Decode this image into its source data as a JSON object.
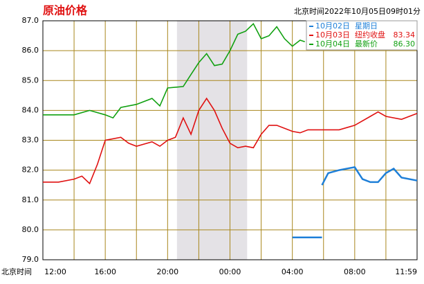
{
  "chart_data": {
    "type": "line",
    "title": "原油价格",
    "subtitle": "北京时间2022年10月05日09时01分",
    "x_label": "北京时间",
    "xlim": [
      0,
      24
    ],
    "ylim": [
      79,
      87
    ],
    "yticks": [
      {
        "value": 79,
        "label": "79.0"
      },
      {
        "value": 80,
        "label": "80.0"
      },
      {
        "value": 81,
        "label": "81.0"
      },
      {
        "value": 82,
        "label": "82.0"
      },
      {
        "value": 83,
        "label": "83.0"
      },
      {
        "value": 84,
        "label": "84.0"
      },
      {
        "value": 85,
        "label": "85.0"
      },
      {
        "value": 86,
        "label": "86.0"
      },
      {
        "value": 87,
        "label": "87.0"
      }
    ],
    "xticks": [
      {
        "value": 0,
        "label": "12:00"
      },
      {
        "value": 4,
        "label": "16:00"
      },
      {
        "value": 8,
        "label": "20:00"
      },
      {
        "value": 12,
        "label": "00:00"
      },
      {
        "value": 16,
        "label": "04:00"
      },
      {
        "value": 20,
        "label": "08:00"
      },
      {
        "value": 24,
        "label": "11:59"
      }
    ],
    "minor_xticks": [
      2,
      6,
      10,
      14,
      18,
      22
    ],
    "shaded_range": [
      8.6,
      13.1
    ],
    "grid": true,
    "series": [
      {
        "name": "10月02日",
        "note": "星期日",
        "color": "#1e7fd8",
        "x": [
          16,
          17.9,
          17.9,
          17.9,
          18.3,
          19,
          20,
          20.5,
          21,
          21.5,
          22,
          22.5,
          23,
          24
        ],
        "values": [
          79.75,
          79.75,
          null,
          81.5,
          81.9,
          82.0,
          82.1,
          81.7,
          81.6,
          81.6,
          81.9,
          82.05,
          81.75,
          81.65
        ]
      },
      {
        "name": "10月03日",
        "note": "纽约收盘",
        "note_value": {
          "value": 83.34,
          "label": "83.34"
        },
        "color": "#e01010",
        "x": [
          0,
          1,
          2,
          2.5,
          3,
          3.5,
          4,
          5,
          5.5,
          6,
          7,
          7.5,
          8,
          8.5,
          9,
          9.5,
          10,
          10.5,
          11,
          11.5,
          12,
          12.5,
          13,
          13.5,
          14,
          14.5,
          15,
          15.5,
          16,
          16.5,
          17,
          18,
          19,
          20,
          21,
          21.5,
          22,
          23,
          24
        ],
        "values": [
          81.6,
          81.6,
          81.7,
          81.8,
          81.55,
          82.2,
          83.0,
          83.1,
          82.9,
          82.8,
          82.95,
          82.8,
          83.0,
          83.1,
          83.75,
          83.2,
          84.0,
          84.4,
          84.0,
          83.4,
          82.9,
          82.75,
          82.8,
          82.75,
          83.2,
          83.5,
          83.5,
          83.4,
          83.3,
          83.25,
          83.35,
          83.35,
          83.35,
          83.5,
          83.8,
          83.95,
          83.8,
          83.7,
          83.9
        ]
      },
      {
        "name": "10月04日",
        "note": "最新价",
        "note_value": {
          "value": 86.3,
          "label": "86.30"
        },
        "color": "#10a010",
        "x": [
          0,
          2,
          3,
          4,
          4.5,
          5,
          6,
          7,
          7.5,
          8,
          9,
          9.5,
          10,
          10.5,
          11,
          11.5,
          12,
          12.5,
          13,
          13.5,
          14,
          14.5,
          15,
          15.5,
          16,
          16.5,
          16.8
        ],
        "values": [
          83.85,
          83.85,
          84.0,
          83.85,
          83.75,
          84.1,
          84.2,
          84.4,
          84.15,
          84.75,
          84.8,
          85.2,
          85.6,
          85.9,
          85.5,
          85.55,
          86.0,
          86.55,
          86.65,
          86.9,
          86.4,
          86.5,
          86.8,
          86.4,
          86.15,
          86.35,
          86.3
        ]
      }
    ]
  }
}
